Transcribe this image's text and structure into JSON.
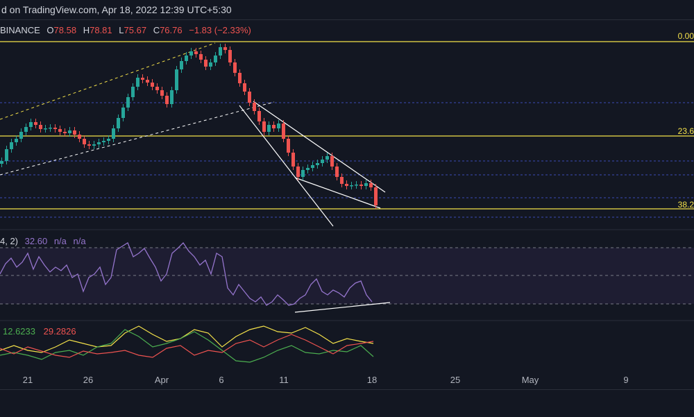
{
  "header": {
    "published_text": "d on TradingView.com, Apr 18, 2022 12:39 UTC+5:30"
  },
  "legend": {
    "symbol": "BINANCE",
    "open_label": "O",
    "open": "78.58",
    "high_label": "H",
    "high": "78.81",
    "low_label": "L",
    "low": "75.67",
    "close_label": "C",
    "close": "76.76",
    "change": "−1.83 (−2.33%)"
  },
  "fib_levels": [
    {
      "label": "0.00"
    },
    {
      "label": "23.6"
    },
    {
      "label": "38.2"
    }
  ],
  "rsi_legend": {
    "params": "4, 2)",
    "value": "32.60",
    "na1": "n/a",
    "na2": "n/a"
  },
  "dmi_legend": {
    "green": "12.6233",
    "red": "29.2826"
  },
  "time_axis": [
    "21",
    "26",
    "Apr",
    "6",
    "11",
    "18",
    "25",
    "May",
    "9"
  ],
  "colors": {
    "background": "#131722",
    "up": "#26a69a",
    "down": "#ef5350",
    "fib": "#f5e24a",
    "rsi": "#9575cd",
    "dmi_plus": "#4caf50",
    "dmi_minus": "#ef5350",
    "adx": "#f5e24a"
  },
  "chart_data": {
    "type": "candlestick",
    "price_x": [
      0,
      7,
      14,
      21,
      28,
      35,
      42,
      49,
      56,
      63,
      70,
      77,
      84,
      91,
      98,
      105,
      112,
      119,
      126,
      133,
      140,
      147,
      154,
      161,
      168,
      175,
      182,
      189,
      196,
      203,
      210,
      217,
      224,
      231,
      238,
      245,
      252,
      259,
      266,
      273,
      280,
      287,
      294,
      301,
      308,
      315,
      322,
      329,
      336,
      343,
      350,
      357,
      364,
      371,
      378,
      385,
      392,
      399,
      406,
      413,
      420,
      427,
      434,
      441,
      448,
      455,
      462,
      469,
      476,
      483,
      490,
      497,
      504,
      511,
      518,
      525,
      532,
      539
    ],
    "price_y": [
      232,
      215,
      205,
      200,
      190,
      183,
      176,
      180,
      186,
      185,
      184,
      186,
      190,
      192,
      188,
      194,
      200,
      208,
      210,
      208,
      205,
      203,
      200,
      185,
      170,
      155,
      140,
      125,
      112,
      115,
      119,
      125,
      130,
      138,
      150,
      130,
      100,
      88,
      80,
      74,
      78,
      86,
      96,
      90,
      80,
      68,
      72,
      90,
      105,
      120,
      132,
      148,
      160,
      175,
      190,
      180,
      185,
      178,
      200,
      220,
      240,
      255,
      245,
      242,
      238,
      235,
      230,
      225,
      240,
      255,
      265,
      268,
      267,
      266,
      268,
      264,
      270,
      296
    ],
    "rsi_x": [
      0,
      8,
      16,
      24,
      32,
      40,
      48,
      56,
      64,
      72,
      80,
      88,
      96,
      104,
      112,
      120,
      128,
      136,
      144,
      152,
      160,
      168,
      176,
      184,
      192,
      200,
      208,
      216,
      224,
      232,
      240,
      248,
      256,
      264,
      272,
      280,
      288,
      296,
      304,
      312,
      320,
      328,
      336,
      344,
      352,
      360,
      368,
      376,
      384,
      392,
      400,
      408,
      416,
      424,
      432,
      440,
      448,
      456,
      464,
      472,
      480,
      488,
      496,
      504,
      512,
      520,
      528,
      536
    ],
    "rsi_y": [
      395,
      380,
      372,
      385,
      378,
      365,
      388,
      370,
      382,
      392,
      385,
      390,
      382,
      400,
      395,
      420,
      400,
      395,
      385,
      410,
      400,
      360,
      355,
      350,
      370,
      365,
      358,
      372,
      385,
      405,
      395,
      365,
      358,
      350,
      362,
      370,
      382,
      375,
      395,
      365,
      370,
      415,
      425,
      410,
      420,
      430,
      435,
      428,
      440,
      435,
      425,
      432,
      440,
      438,
      430,
      425,
      410,
      402,
      420,
      425,
      418,
      422,
      428,
      415,
      408,
      405,
      425,
      435
    ],
    "dmi_x": [
      0,
      20,
      40,
      60,
      80,
      100,
      120,
      140,
      160,
      180,
      200,
      220,
      240,
      260,
      280,
      300,
      320,
      340,
      360,
      380,
      400,
      420,
      440,
      460,
      480,
      500,
      520,
      538
    ],
    "adx_y": [
      505,
      498,
      505,
      508,
      500,
      490,
      495,
      500,
      498,
      480,
      470,
      482,
      492,
      488,
      475,
      480,
      500,
      485,
      475,
      470,
      478,
      480,
      472,
      482,
      495,
      488,
      492,
      495
    ],
    "plus_y": [
      512,
      508,
      512,
      518,
      508,
      505,
      512,
      500,
      495,
      475,
      485,
      500,
      495,
      488,
      478,
      490,
      505,
      520,
      522,
      515,
      505,
      498,
      508,
      510,
      505,
      507,
      498,
      514
    ],
    "minus_y": [
      502,
      510,
      500,
      506,
      512,
      515,
      506,
      510,
      508,
      505,
      512,
      515,
      502,
      498,
      512,
      505,
      508,
      495,
      490,
      500,
      490,
      482,
      490,
      500,
      510,
      498,
      495,
      492
    ],
    "time_labels_x": [
      40,
      127,
      233,
      319,
      409,
      536,
      656,
      764,
      902
    ]
  }
}
